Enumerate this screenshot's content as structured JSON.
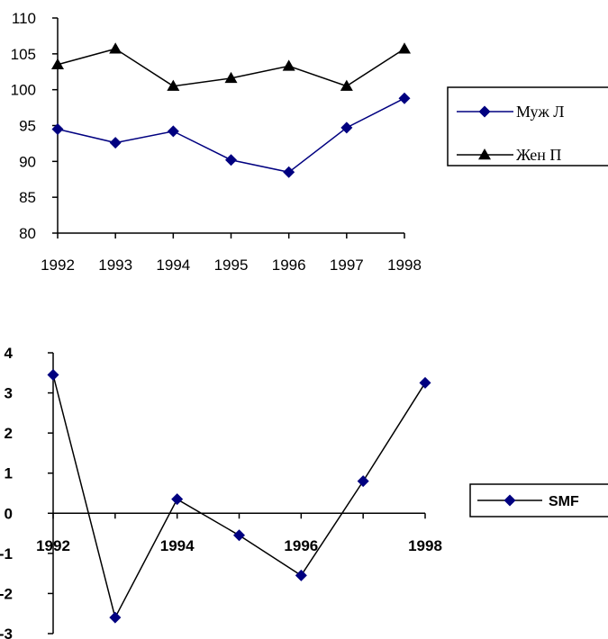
{
  "chart_data": [
    {
      "type": "line",
      "x": [
        1992,
        1993,
        1994,
        1995,
        1996,
        1997,
        1998
      ],
      "xtick_labels": [
        "1992",
        "1993",
        "1994",
        "1995",
        "1996",
        "1997",
        "1998"
      ],
      "ylim": [
        80,
        110
      ],
      "yticks": [
        80,
        85,
        90,
        95,
        100,
        105,
        110
      ],
      "ytick_labels": [
        "80",
        "85",
        "90",
        "95",
        "100",
        "105",
        "110"
      ],
      "grid": false,
      "legend_position": "right",
      "series": [
        {
          "name": "Муж Л",
          "values": [
            94.5,
            92.6,
            94.2,
            90.2,
            88.5,
            94.7,
            98.8
          ],
          "color": "#000080",
          "marker": "diamond"
        },
        {
          "name": "Жен П",
          "values": [
            103.5,
            105.7,
            100.5,
            101.6,
            103.3,
            100.5,
            105.7
          ],
          "color": "#000000",
          "marker": "triangle"
        }
      ]
    },
    {
      "type": "line",
      "x": [
        1992,
        1993,
        1994,
        1995,
        1996,
        1997,
        1998
      ],
      "xtick_labels": [
        "1992",
        "1994",
        "1996",
        "1998"
      ],
      "ylim": [
        -3,
        4
      ],
      "yticks": [
        -3,
        -2,
        -1,
        0,
        1,
        2,
        3,
        4
      ],
      "ytick_labels": [
        "-3",
        "-2",
        "-1",
        "0",
        "1",
        "2",
        "3",
        "4"
      ],
      "grid": false,
      "legend_position": "right",
      "series": [
        {
          "name": "SMF",
          "values": [
            3.45,
            -2.6,
            0.35,
            -0.55,
            -1.55,
            0.8,
            3.25
          ],
          "color": "#000080",
          "line_color": "#000000",
          "marker": "diamond"
        }
      ]
    }
  ]
}
